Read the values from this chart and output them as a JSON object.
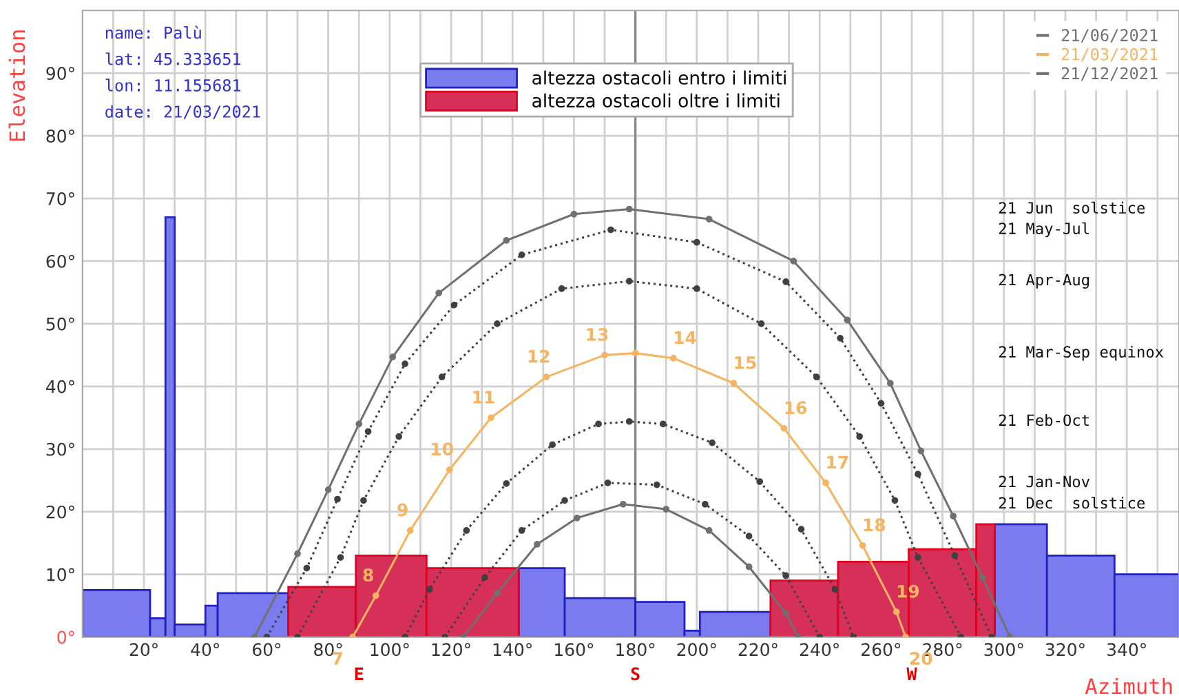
{
  "chart_data": {
    "type": "histogram",
    "xlabel": "Azimuth",
    "ylabel": "Elevation",
    "bins": [
      0,
      22,
      27,
      30,
      40,
      44,
      67,
      89,
      112,
      142,
      157,
      180,
      196,
      201,
      224,
      246,
      269,
      291,
      297,
      314,
      336,
      357
    ],
    "series": [
      {
        "name": "altezza ostacoli entro i limiti",
        "color": "#7b7bf0",
        "values": [
          7.5,
          3,
          67,
          2,
          5,
          7,
          null,
          null,
          null,
          11,
          6.2,
          5.6,
          1,
          4,
          null,
          null,
          null,
          null,
          18,
          13,
          10
        ]
      },
      {
        "name": "altezza ostacoli oltre i limiti",
        "color": "#d63058",
        "values": [
          null,
          null,
          null,
          null,
          null,
          null,
          8,
          13,
          11,
          null,
          null,
          null,
          null,
          null,
          9,
          12,
          14,
          18,
          null,
          null,
          null
        ]
      },
      {
        "type": "line",
        "name": "21/06/2021",
        "color": "#707070",
        "line_style": "solid",
        "x": [
          56,
          70,
          80,
          90,
          101,
          116,
          138,
          160,
          178,
          204,
          231.5,
          249,
          263,
          273,
          283.5,
          293,
          302
        ],
        "values": [
          0,
          13.3,
          23.5,
          34,
          44.7,
          54.9,
          63.3,
          67.5,
          68.3,
          66.7,
          60,
          50.6,
          40.5,
          29.7,
          19.3,
          9.5,
          0
        ]
      },
      {
        "type": "line",
        "color": "#404040",
        "line_style": "dotted",
        "x": [
          60,
          73,
          83,
          93,
          105,
          121,
          143,
          172,
          200,
          229,
          246.7,
          260,
          272,
          284,
          296
        ],
        "values": [
          0,
          11,
          22,
          32.8,
          43.6,
          53,
          61,
          65,
          63,
          56.7,
          47.7,
          37.3,
          26,
          13,
          0
        ]
      },
      {
        "type": "line",
        "color": "#404040",
        "line_style": "dotted",
        "x": [
          70,
          84,
          91.5,
          103,
          117,
          135,
          156,
          178,
          200,
          221,
          239,
          253,
          264.5,
          272,
          286
        ],
        "values": [
          0,
          12.7,
          21.8,
          32,
          41.5,
          50,
          55.6,
          56.8,
          55.6,
          50,
          41.5,
          32,
          21.8,
          12.7,
          0
        ]
      },
      {
        "type": "line",
        "name": "21/03/2021",
        "color": "#f5b461",
        "line_style": "solid",
        "x": [
          88,
          95.5,
          106.7,
          119.5,
          133,
          151,
          170,
          180,
          192.4,
          212,
          228.4,
          242,
          254,
          265,
          268
        ],
        "values": [
          0,
          6.6,
          17,
          26.7,
          35,
          41.5,
          45,
          45.3,
          44.5,
          40.5,
          33.3,
          24.6,
          14.6,
          4,
          0
        ]
      },
      {
        "type": "line",
        "color": "#404040",
        "line_style": "dotted",
        "x": [
          105,
          113,
          125,
          138,
          153,
          168,
          178,
          189,
          205,
          220.5,
          234,
          245,
          251
        ],
        "values": [
          0,
          7.6,
          17,
          24.5,
          30.7,
          34,
          34.4,
          34,
          31,
          24.8,
          17.2,
          7.6,
          0
        ]
      },
      {
        "type": "line",
        "color": "#404040",
        "line_style": "dotted",
        "x": [
          118,
          131,
          143,
          157,
          171,
          187,
          202.7,
          217,
          229,
          240
        ],
        "values": [
          0,
          9.5,
          17,
          21.8,
          24.6,
          24.3,
          21.2,
          16.1,
          9.8,
          0
        ]
      },
      {
        "type": "line",
        "name": "21/12/2021",
        "color": "#707070",
        "line_style": "solid",
        "x": [
          124,
          135,
          148,
          161,
          176,
          190,
          204,
          217,
          229,
          233
        ],
        "values": [
          0,
          7,
          14.8,
          19,
          21.2,
          20.4,
          17,
          11.2,
          3.8,
          0
        ]
      }
    ],
    "marker": "circle",
    "xlim": [
      0,
      357
    ],
    "ylim": [
      0,
      100
    ],
    "xticks": [
      {
        "value": 10,
        "label": null
      },
      {
        "value": 20,
        "label": "20°"
      },
      {
        "value": 30,
        "label": null
      },
      {
        "value": 40,
        "label": "40°"
      },
      {
        "value": 50,
        "label": null
      },
      {
        "value": 60,
        "label": "60°"
      },
      {
        "value": 70,
        "label": null
      },
      {
        "value": 80,
        "label": "80°"
      },
      {
        "value": 90,
        "label": null
      },
      {
        "value": 100,
        "label": "100°"
      },
      {
        "value": 110,
        "label": null
      },
      {
        "value": 120,
        "label": "120°"
      },
      {
        "value": 130,
        "label": null
      },
      {
        "value": 140,
        "label": "140°"
      },
      {
        "value": 150,
        "label": null
      },
      {
        "value": 160,
        "label": "160°"
      },
      {
        "value": 170,
        "label": null
      },
      {
        "value": 180,
        "label": "180°"
      },
      {
        "value": 190,
        "label": null
      },
      {
        "value": 200,
        "label": "200°"
      },
      {
        "value": 210,
        "label": null
      },
      {
        "value": 220,
        "label": "220°"
      },
      {
        "value": 230,
        "label": null
      },
      {
        "value": 240,
        "label": "240°"
      },
      {
        "value": 250,
        "label": null
      },
      {
        "value": 260,
        "label": "260°"
      },
      {
        "value": 270,
        "label": null
      },
      {
        "value": 280,
        "label": "280°"
      },
      {
        "value": 290,
        "label": null
      },
      {
        "value": 300,
        "label": "300°"
      },
      {
        "value": 310,
        "label": null
      },
      {
        "value": 320,
        "label": "320°"
      },
      {
        "value": 330,
        "label": null
      },
      {
        "value": 340,
        "label": "340°"
      },
      {
        "value": 350,
        "label": null
      }
    ],
    "yticks": [
      {
        "value": 0,
        "label": "0°"
      },
      {
        "value": 10,
        "label": "10°"
      },
      {
        "value": 20,
        "label": "20°"
      },
      {
        "value": 30,
        "label": "30°"
      },
      {
        "value": 40,
        "label": "40°"
      },
      {
        "value": 50,
        "label": "50°"
      },
      {
        "value": 60,
        "label": "60°"
      },
      {
        "value": 70,
        "label": "70°"
      },
      {
        "value": 80,
        "label": "80°"
      },
      {
        "value": 90,
        "label": "90°"
      }
    ],
    "ref_lines": [
      {
        "axis": "x",
        "value": 180,
        "color": "#888888"
      }
    ],
    "grid": true,
    "legend": "top right",
    "annotations": [
      "name: Palù",
      "lat: 45.333651",
      "lon: 11.155681",
      "date: 21/03/2021",
      "21 Jun  solstice",
      "21 May-Jul",
      "21 Apr-Aug",
      "21 Mar-Sep equinox",
      "21 Feb-Oct",
      "21 Jan-Nov",
      "21 Dec  solstice",
      {
        "text": "7",
        "x": 88,
        "y": 0
      },
      {
        "text": "8",
        "x": 95.5,
        "y": 6.6
      },
      {
        "text": "9",
        "x": 106.7,
        "y": 17
      },
      {
        "text": "10",
        "x": 119.5,
        "y": 26.7
      },
      {
        "text": "11",
        "x": 133,
        "y": 35
      },
      {
        "text": "12",
        "x": 151,
        "y": 41.5
      },
      {
        "text": "13",
        "x": 170,
        "y": 45
      },
      {
        "text": "14",
        "x": 192.4,
        "y": 44.5
      },
      {
        "text": "15",
        "x": 212,
        "y": 40.5
      },
      {
        "text": "16",
        "x": 228.4,
        "y": 33.3
      },
      {
        "text": "17",
        "x": 242,
        "y": 24.6
      },
      {
        "text": "18",
        "x": 254,
        "y": 14.6
      },
      {
        "text": "19",
        "x": 265,
        "y": 4
      },
      {
        "text": "20",
        "x": 268,
        "y": 0
      },
      {
        "text": "E",
        "x": 90,
        "y": 0
      },
      {
        "text": "S",
        "x": 180,
        "y": 0
      },
      {
        "text": "W",
        "x": 270,
        "y": 0
      }
    ]
  }
}
